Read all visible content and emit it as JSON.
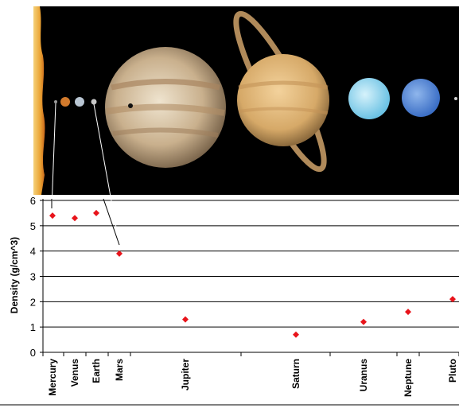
{
  "chart_data": {
    "type": "scatter",
    "title": "",
    "xlabel": "",
    "ylabel": "Density (g/cm^3)",
    "ylim": [
      0,
      6
    ],
    "yticks": [
      0,
      1,
      2,
      3,
      4,
      5,
      6
    ],
    "grid": true,
    "marker_color": "#e8141b",
    "series": [
      {
        "points": [
          {
            "label": "Mercury",
            "y": 5.4
          },
          {
            "label": "Venus",
            "y": 5.3
          },
          {
            "label": "Earth",
            "y": 5.5
          },
          {
            "label": "Mars",
            "y": 3.9
          },
          {
            "label": "Jupiter",
            "y": 1.3
          },
          {
            "label": "Saturn",
            "y": 0.7
          },
          {
            "label": "Uranus",
            "y": 1.2
          },
          {
            "label": "Neptune",
            "y": 1.6
          },
          {
            "label": "Pluto",
            "y": 2.1
          }
        ]
      }
    ]
  },
  "photo": {
    "objects": [
      "sun",
      "mercury",
      "venus",
      "earth",
      "mars",
      "jupiter",
      "saturn",
      "uranus",
      "neptune",
      "pluto"
    ]
  }
}
